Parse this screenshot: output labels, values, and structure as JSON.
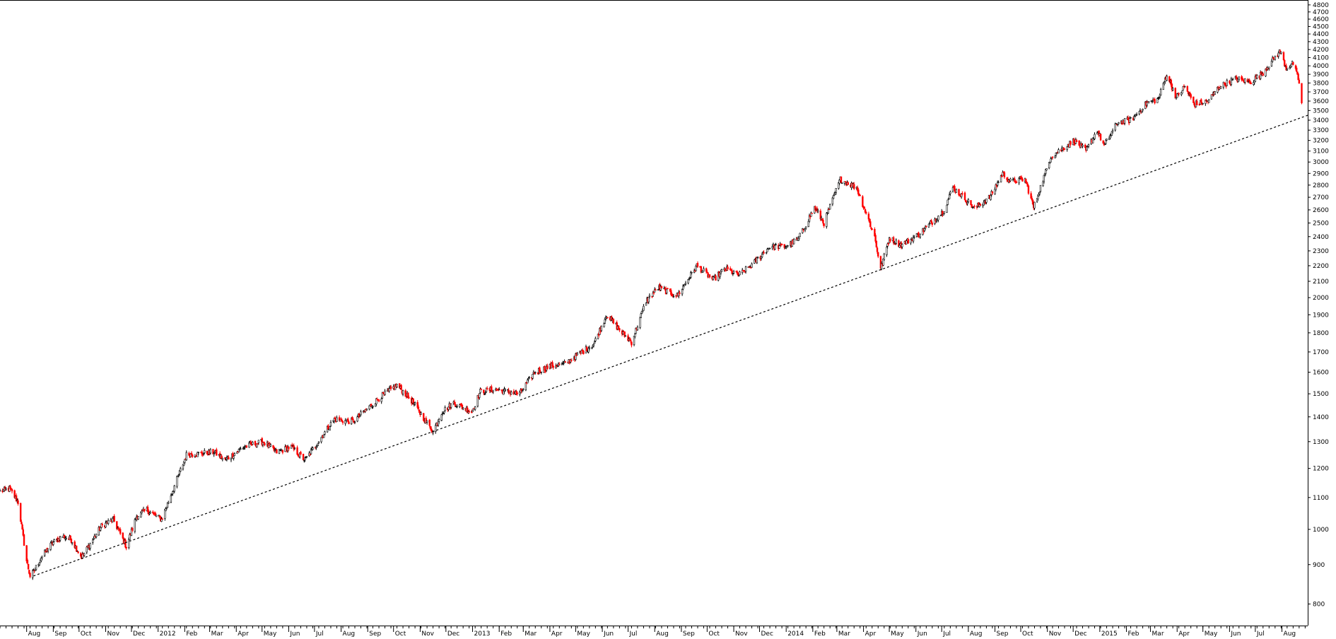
{
  "chart_data": {
    "type": "line",
    "title": "",
    "xlabel": "",
    "ylabel": "",
    "ylim": [
      750,
      4850
    ],
    "y_ticks": [
      800,
      900,
      1000,
      1100,
      1200,
      1300,
      1400,
      1500,
      1600,
      1700,
      1800,
      1900,
      2000,
      2100,
      2200,
      2300,
      2400,
      2500,
      2600,
      2700,
      2800,
      2900,
      3000,
      3100,
      3200,
      3300,
      3400,
      3500,
      3600,
      3700,
      3800,
      3900,
      4000,
      4100,
      4200,
      4300,
      4400,
      4500,
      4600,
      4700,
      4800
    ],
    "y_scale": "log",
    "x_range": [
      "2011-07-01",
      "2015-08-31"
    ],
    "x_ticks": [
      {
        "date": "2011-08-01",
        "label": "Aug"
      },
      {
        "date": "2011-09-01",
        "label": "Sep"
      },
      {
        "date": "2011-10-01",
        "label": "Oct"
      },
      {
        "date": "2011-11-01",
        "label": "Nov"
      },
      {
        "date": "2011-12-01",
        "label": "Dec"
      },
      {
        "date": "2012-01-01",
        "label": "2012"
      },
      {
        "date": "2012-02-01",
        "label": "Feb"
      },
      {
        "date": "2012-03-01",
        "label": "Mar"
      },
      {
        "date": "2012-04-01",
        "label": "Apr"
      },
      {
        "date": "2012-05-01",
        "label": "May"
      },
      {
        "date": "2012-06-01",
        "label": "Jun"
      },
      {
        "date": "2012-07-01",
        "label": "Jul"
      },
      {
        "date": "2012-08-01",
        "label": "Aug"
      },
      {
        "date": "2012-09-01",
        "label": "Sep"
      },
      {
        "date": "2012-10-01",
        "label": "Oct"
      },
      {
        "date": "2012-11-01",
        "label": "Nov"
      },
      {
        "date": "2012-12-01",
        "label": "Dec"
      },
      {
        "date": "2013-01-01",
        "label": "2013"
      },
      {
        "date": "2013-02-01",
        "label": "Feb"
      },
      {
        "date": "2013-03-01",
        "label": "Mar"
      },
      {
        "date": "2013-04-01",
        "label": "Apr"
      },
      {
        "date": "2013-05-01",
        "label": "May"
      },
      {
        "date": "2013-06-01",
        "label": "Jun"
      },
      {
        "date": "2013-07-01",
        "label": "Jul"
      },
      {
        "date": "2013-08-01",
        "label": "Aug"
      },
      {
        "date": "2013-09-01",
        "label": "Sep"
      },
      {
        "date": "2013-10-01",
        "label": "Oct"
      },
      {
        "date": "2013-11-01",
        "label": "Nov"
      },
      {
        "date": "2013-12-01",
        "label": "Dec"
      },
      {
        "date": "2014-01-01",
        "label": "2014"
      },
      {
        "date": "2014-02-01",
        "label": "Feb"
      },
      {
        "date": "2014-03-01",
        "label": "Mar"
      },
      {
        "date": "2014-04-01",
        "label": "Apr"
      },
      {
        "date": "2014-05-01",
        "label": "May"
      },
      {
        "date": "2014-06-01",
        "label": "Jun"
      },
      {
        "date": "2014-07-01",
        "label": "Jul"
      },
      {
        "date": "2014-08-01",
        "label": "Aug"
      },
      {
        "date": "2014-09-01",
        "label": "Sep"
      },
      {
        "date": "2014-10-01",
        "label": "Oct"
      },
      {
        "date": "2014-11-01",
        "label": "Nov"
      },
      {
        "date": "2014-12-01",
        "label": "Dec"
      },
      {
        "date": "2015-01-01",
        "label": "2015"
      },
      {
        "date": "2015-02-01",
        "label": "Feb"
      },
      {
        "date": "2015-03-01",
        "label": "Mar"
      },
      {
        "date": "2015-04-01",
        "label": "Apr"
      },
      {
        "date": "2015-05-01",
        "label": "May"
      },
      {
        "date": "2015-06-01",
        "label": "Jun"
      },
      {
        "date": "2015-07-01",
        "label": "Jul"
      },
      {
        "date": "2015-08-01",
        "label": "Aug"
      }
    ],
    "grid": false,
    "colors": {
      "up": "#000000",
      "down": "#ff0000",
      "trendline": "#000000"
    },
    "series": [
      {
        "x": [
          "2011-07-01",
          "2011-07-12",
          "2011-07-22",
          "2011-08-01",
          "2011-08-05",
          "2011-08-09",
          "2011-08-18",
          "2011-08-31",
          "2011-09-12",
          "2011-09-22",
          "2011-10-04",
          "2011-10-27",
          "2011-11-10",
          "2011-11-25",
          "2011-12-07",
          "2011-12-19",
          "2012-01-05",
          "2012-02-03",
          "2012-03-06",
          "2012-03-19",
          "2012-04-10",
          "2012-05-02",
          "2012-05-18",
          "2012-06-04",
          "2012-06-20",
          "2012-07-24",
          "2012-08-15",
          "2012-09-14",
          "2012-10-05",
          "2012-10-22",
          "2012-11-16",
          "2012-11-26",
          "2012-12-10",
          "2012-12-31",
          "2013-01-10",
          "2013-01-25",
          "2013-02-25",
          "2013-03-14",
          "2013-04-03",
          "2013-04-18",
          "2013-05-22",
          "2013-06-06",
          "2013-06-24",
          "2013-07-05",
          "2013-07-22",
          "2013-08-05",
          "2013-08-27",
          "2013-09-19",
          "2013-10-08",
          "2013-10-22",
          "2013-11-07",
          "2013-11-21",
          "2013-12-13",
          "2013-12-31",
          "2014-01-15",
          "2014-02-03",
          "2014-02-14",
          "2014-03-05",
          "2014-03-24",
          "2014-04-14",
          "2014-04-21",
          "2014-05-01",
          "2014-05-15",
          "2014-06-05",
          "2014-07-03",
          "2014-07-14",
          "2014-07-31",
          "2014-08-08",
          "2014-08-26",
          "2014-09-10",
          "2014-09-19",
          "2014-10-06",
          "2014-10-16",
          "2014-11-05",
          "2014-12-02",
          "2014-12-16",
          "2014-12-29",
          "2015-01-06",
          "2015-01-22",
          "2015-02-06",
          "2015-02-25",
          "2015-03-10",
          "2015-03-20",
          "2015-03-31",
          "2015-04-10",
          "2015-04-21",
          "2015-05-07",
          "2015-05-20",
          "2015-06-09",
          "2015-06-25",
          "2015-07-08",
          "2015-07-20",
          "2015-07-30",
          "2015-08-06",
          "2015-08-14",
          "2015-08-21",
          "2015-08-24"
        ],
        "y": [
          1120,
          1130,
          1085,
          910,
          870,
          880,
          920,
          960,
          980,
          970,
          920,
          1010,
          1030,
          950,
          1040,
          1060,
          1030,
          1250,
          1260,
          1230,
          1280,
          1300,
          1260,
          1280,
          1230,
          1390,
          1380,
          1480,
          1540,
          1470,
          1340,
          1420,
          1460,
          1420,
          1510,
          1520,
          1500,
          1600,
          1630,
          1640,
          1740,
          1900,
          1800,
          1750,
          1980,
          2060,
          2010,
          2200,
          2110,
          2180,
          2140,
          2200,
          2330,
          2330,
          2380,
          2620,
          2500,
          2850,
          2780,
          2400,
          2180,
          2390,
          2340,
          2420,
          2590,
          2780,
          2670,
          2610,
          2700,
          2900,
          2830,
          2850,
          2620,
          3050,
          3200,
          3100,
          3300,
          3150,
          3380,
          3400,
          3580,
          3620,
          3900,
          3640,
          3760,
          3560,
          3600,
          3760,
          3850,
          3810,
          3900,
          4050,
          4180,
          3970,
          4030,
          3810,
          3580
        ]
      }
    ],
    "trendline": {
      "x": [
        "2011-08-09",
        "2015-08-31"
      ],
      "y": [
        870,
        3450
      ]
    }
  }
}
